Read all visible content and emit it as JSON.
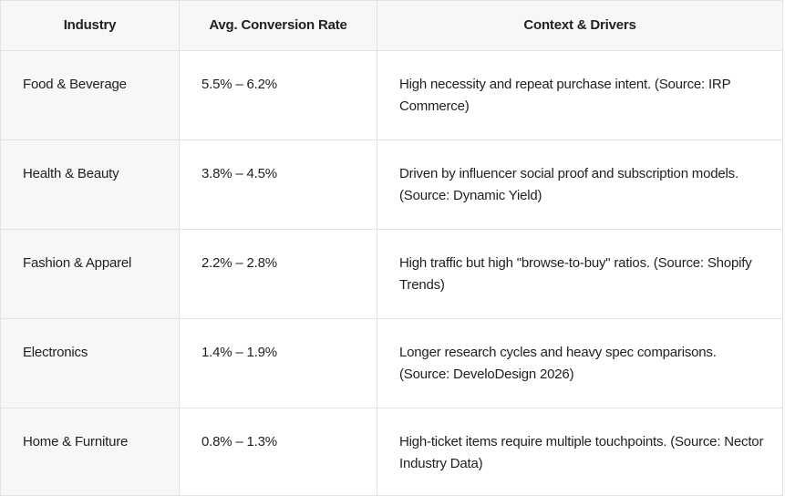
{
  "table": {
    "headers": [
      "Industry",
      "Avg. Conversion Rate",
      "Context & Drivers"
    ],
    "rows": [
      {
        "industry": "Food & Beverage",
        "rate": "5.5% – 6.2%",
        "context": "High necessity and repeat purchase intent. (Source: IRP Commerce)"
      },
      {
        "industry": "Health & Beauty",
        "rate": "3.8% – 4.5%",
        "context": "Driven by influencer social proof and subscription models. (Source: Dynamic Yield)"
      },
      {
        "industry": "Fashion & Apparel",
        "rate": "2.2% – 2.8%",
        "context": "High traffic but high \"browse-to-buy\" ratios. (Source: Shopify Trends)"
      },
      {
        "industry": "Electronics",
        "rate": "1.4% – 1.9%",
        "context": "Longer research cycles and heavy spec comparisons. (Source: DeveloDesign 2026)"
      },
      {
        "industry": "Home & Furniture",
        "rate": "0.8% – 1.3%",
        "context": "High-ticket items require multiple touchpoints. (Source: Nector Industry Data)"
      }
    ]
  }
}
